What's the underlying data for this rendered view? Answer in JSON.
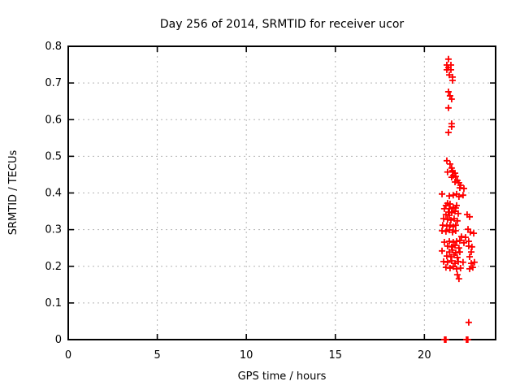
{
  "window": {
    "background": "#ffffff"
  },
  "chart_data": {
    "type": "scatter",
    "title": "Day 256 of 2014, SRMTID for receiver ucor",
    "xlabel": "GPS time / hours",
    "ylabel": "SRMTID / TECUs",
    "xlim": [
      0,
      24
    ],
    "ylim": [
      0,
      0.8
    ],
    "xticks": [
      0,
      5,
      10,
      15,
      20
    ],
    "yticks": [
      0,
      0.1,
      0.2,
      0.3,
      0.4,
      0.5,
      0.6,
      0.7,
      0.8
    ],
    "grid": true,
    "legend_position": "none",
    "marker": "plus",
    "marker_color": "#ff0000",
    "grid_color": "#b4b4b4",
    "frame_color": "#000000",
    "series": [
      {
        "name": "SRMTID",
        "points": [
          [
            21.35,
            0.765
          ],
          [
            21.26,
            0.749
          ],
          [
            21.49,
            0.749
          ],
          [
            21.35,
            0.742
          ],
          [
            21.26,
            0.736
          ],
          [
            21.49,
            0.736
          ],
          [
            21.4,
            0.722
          ],
          [
            21.58,
            0.716
          ],
          [
            21.58,
            0.707
          ],
          [
            21.35,
            0.676
          ],
          [
            21.44,
            0.665
          ],
          [
            21.53,
            0.656
          ],
          [
            21.35,
            0.632
          ],
          [
            21.53,
            0.589
          ],
          [
            21.53,
            0.581
          ],
          [
            21.35,
            0.565
          ],
          [
            21.26,
            0.488
          ],
          [
            21.44,
            0.479
          ],
          [
            21.53,
            0.468
          ],
          [
            21.58,
            0.461
          ],
          [
            21.3,
            0.457
          ],
          [
            21.58,
            0.457
          ],
          [
            21.72,
            0.454
          ],
          [
            21.62,
            0.448
          ],
          [
            21.76,
            0.445
          ],
          [
            21.53,
            0.443
          ],
          [
            21.85,
            0.434
          ],
          [
            21.72,
            0.43
          ],
          [
            21.94,
            0.428
          ],
          [
            22.03,
            0.421
          ],
          [
            21.99,
            0.414
          ],
          [
            22.22,
            0.412
          ],
          [
            20.99,
            0.397
          ],
          [
            21.4,
            0.392
          ],
          [
            21.62,
            0.394
          ],
          [
            21.81,
            0.397
          ],
          [
            21.94,
            0.39
          ],
          [
            22.17,
            0.394
          ],
          [
            21.3,
            0.372
          ],
          [
            21.44,
            0.37
          ],
          [
            21.21,
            0.366
          ],
          [
            21.62,
            0.361
          ],
          [
            21.76,
            0.359
          ],
          [
            21.4,
            0.357
          ],
          [
            21.12,
            0.357
          ],
          [
            21.81,
            0.366
          ],
          [
            21.21,
            0.341
          ],
          [
            21.4,
            0.339
          ],
          [
            21.53,
            0.346
          ],
          [
            21.72,
            0.35
          ],
          [
            21.9,
            0.344
          ],
          [
            22.4,
            0.341
          ],
          [
            21.35,
            0.348
          ],
          [
            22.54,
            0.335
          ],
          [
            21.08,
            0.33
          ],
          [
            21.3,
            0.328
          ],
          [
            21.49,
            0.326
          ],
          [
            21.67,
            0.33
          ],
          [
            21.85,
            0.324
          ],
          [
            21.03,
            0.312
          ],
          [
            21.26,
            0.31
          ],
          [
            21.44,
            0.312
          ],
          [
            21.62,
            0.308
          ],
          [
            21.76,
            0.312
          ],
          [
            20.99,
            0.297
          ],
          [
            21.21,
            0.295
          ],
          [
            21.4,
            0.299
          ],
          [
            21.58,
            0.293
          ],
          [
            21.76,
            0.297
          ],
          [
            22.45,
            0.301
          ],
          [
            22.58,
            0.293
          ],
          [
            22.77,
            0.29
          ],
          [
            22.08,
            0.281
          ],
          [
            22.31,
            0.279
          ],
          [
            21.12,
            0.266
          ],
          [
            21.4,
            0.268
          ],
          [
            21.62,
            0.266
          ],
          [
            21.81,
            0.268
          ],
          [
            21.99,
            0.27
          ],
          [
            22.22,
            0.264
          ],
          [
            22.49,
            0.268
          ],
          [
            21.3,
            0.255
          ],
          [
            21.53,
            0.253
          ],
          [
            21.72,
            0.257
          ],
          [
            21.94,
            0.25
          ],
          [
            22.49,
            0.255
          ],
          [
            22.67,
            0.253
          ],
          [
            20.99,
            0.242
          ],
          [
            21.4,
            0.239
          ],
          [
            21.58,
            0.244
          ],
          [
            21.76,
            0.237
          ],
          [
            21.99,
            0.239
          ],
          [
            22.63,
            0.239
          ],
          [
            21.26,
            0.228
          ],
          [
            21.49,
            0.226
          ],
          [
            21.67,
            0.231
          ],
          [
            21.85,
            0.224
          ],
          [
            22.54,
            0.226
          ],
          [
            21.08,
            0.213
          ],
          [
            21.3,
            0.211
          ],
          [
            21.53,
            0.215
          ],
          [
            21.72,
            0.208
          ],
          [
            21.9,
            0.213
          ],
          [
            22.17,
            0.211
          ],
          [
            22.63,
            0.208
          ],
          [
            22.81,
            0.211
          ],
          [
            21.21,
            0.197
          ],
          [
            21.44,
            0.195
          ],
          [
            21.62,
            0.199
          ],
          [
            21.81,
            0.193
          ],
          [
            22.03,
            0.195
          ],
          [
            22.54,
            0.193
          ],
          [
            22.72,
            0.197
          ],
          [
            21.85,
            0.177
          ],
          [
            21.94,
            0.166
          ],
          [
            22.49,
            0.047
          ],
          [
            21.13,
            0.0
          ],
          [
            21.17,
            0.0
          ],
          [
            21.21,
            0.0
          ],
          [
            22.36,
            0.0
          ],
          [
            22.4,
            0.0
          ],
          [
            22.44,
            0.0
          ]
        ]
      }
    ]
  }
}
